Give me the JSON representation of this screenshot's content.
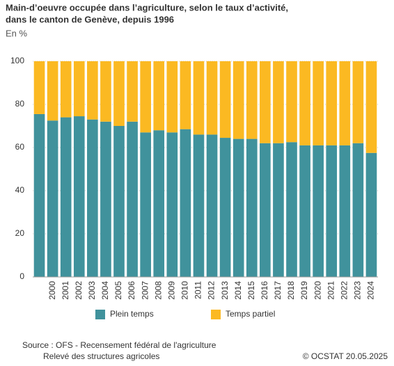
{
  "chart_data": {
    "type": "stacked_bar",
    "title_lines": [
      "Main-d’oeuvre occupée dans l’agriculture, selon le taux d’activité,",
      "dans le canton de Genève, depuis 1996"
    ],
    "subtitle": "En %",
    "categories": [
      null,
      "2000",
      "2001",
      "2002",
      "2003",
      "2004",
      "2005",
      "2006",
      "2007",
      "2008",
      "2009",
      "2010",
      "2011",
      "2012",
      "2013",
      "2014",
      "2015",
      "2016",
      "2017",
      "2018",
      "2019",
      "2020",
      "2021",
      "2022",
      "2023",
      "2024"
    ],
    "series": [
      {
        "name": "Plein temps",
        "color": "#40929c",
        "values": [
          75.5,
          72.5,
          74,
          74.5,
          73,
          72,
          70,
          72,
          67,
          68,
          67,
          68.5,
          66,
          66,
          64.5,
          64,
          64,
          62,
          62,
          62.5,
          61,
          61,
          61,
          61,
          62,
          57.5
        ]
      },
      {
        "name": "Temps partiel",
        "color": "#fbb922",
        "values": [
          24.5,
          27.5,
          26,
          25.5,
          27,
          28,
          30,
          28,
          33,
          32,
          33,
          31.5,
          34,
          34,
          35.5,
          36,
          36,
          38,
          38,
          37.5,
          39,
          39,
          39,
          39,
          38,
          42.5
        ]
      }
    ],
    "ylim": [
      0,
      100
    ],
    "yticks": [
      0,
      20,
      40,
      60,
      80,
      100
    ],
    "grid": true,
    "source_lines": [
      "Source : OFS - Recensement fédéral de l'agriculture",
      "Relevé des structures agricoles"
    ],
    "copyright": "© OCSTAT 20.05.2025"
  }
}
